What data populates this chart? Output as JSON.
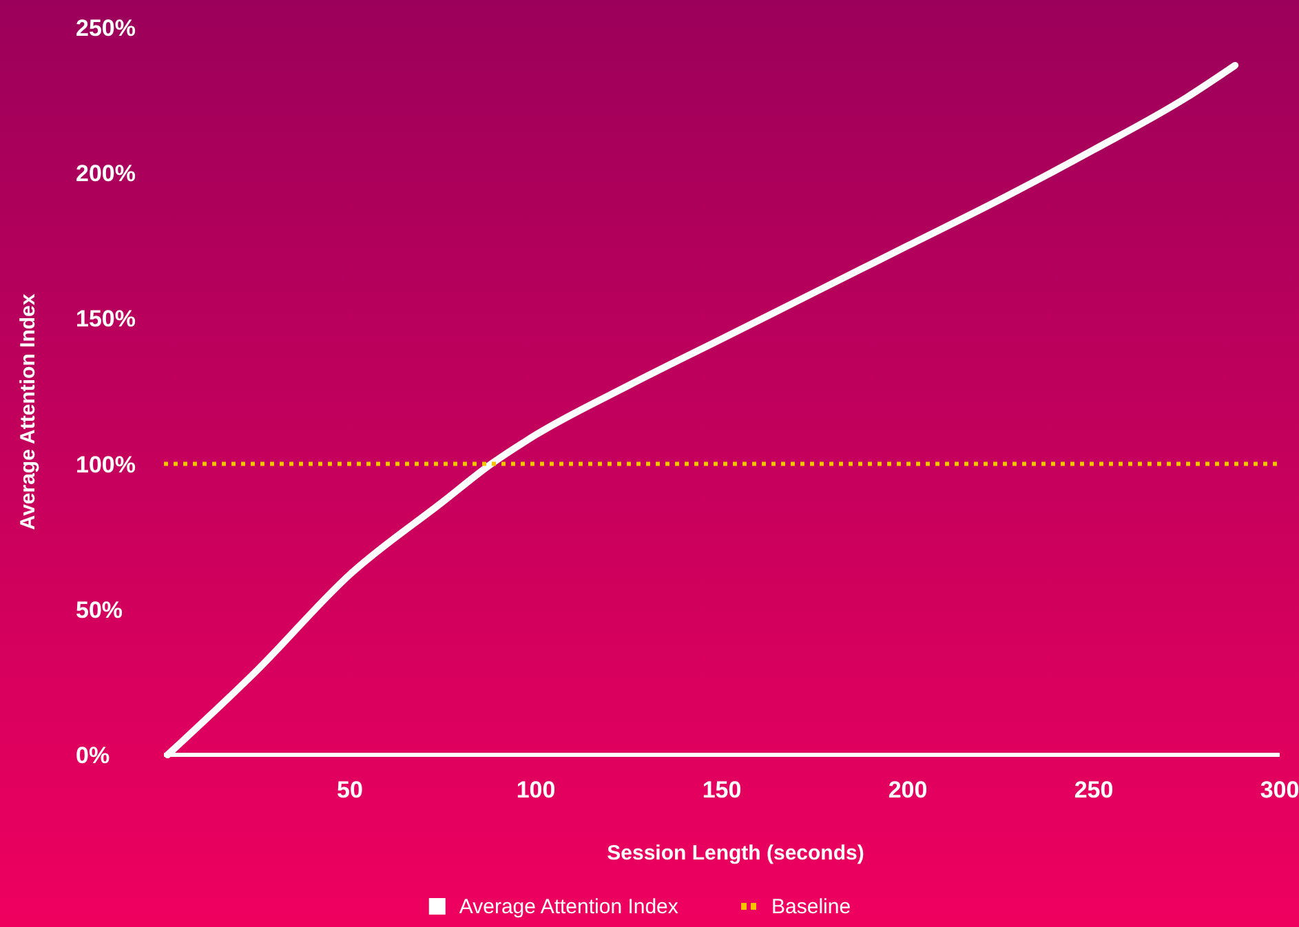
{
  "chart_data": {
    "type": "line",
    "xlabel": "Session Length (seconds)",
    "ylabel": "Average Attention Index",
    "xlim": [
      0,
      300
    ],
    "xticks": [
      50,
      100,
      150,
      200,
      250,
      300
    ],
    "ylim": [
      0,
      250
    ],
    "yticks": [
      {
        "value": 0,
        "label": "0%"
      },
      {
        "value": 50,
        "label": "50%"
      },
      {
        "value": 100,
        "label": "100%"
      },
      {
        "value": 150,
        "label": "150%"
      },
      {
        "value": 200,
        "label": "200%"
      },
      {
        "value": 250,
        "label": "250%"
      }
    ],
    "legend": "bottom",
    "series": [
      {
        "name": "Average Attention Index",
        "color": "#ffffff",
        "line_style": "solid",
        "x": [
          1,
          25,
          50,
          75,
          88,
          100,
          125,
          150,
          175,
          200,
          225,
          250,
          275,
          288
        ],
        "values": [
          0,
          29,
          62,
          87,
          100,
          110,
          127,
          143,
          159,
          175,
          191,
          208,
          226,
          237
        ]
      },
      {
        "name": "Baseline",
        "color": "#f5c400",
        "line_style": "dotted",
        "x": [
          0,
          300
        ],
        "values": [
          100,
          100
        ]
      }
    ]
  }
}
